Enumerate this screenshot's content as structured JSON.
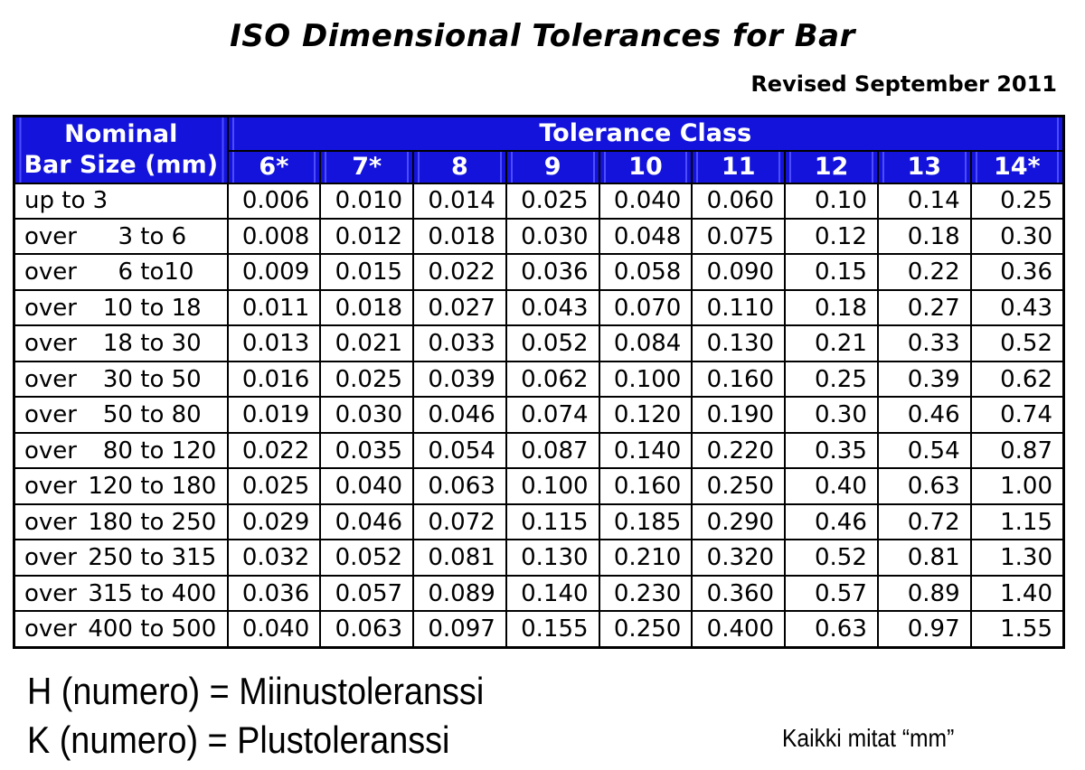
{
  "title": "ISO Dimensional Tolerances for Bar",
  "revised": "Revised September 2011",
  "table": {
    "corner_header_line1": "Nominal",
    "corner_header_line2": "Bar Size (mm)",
    "group_header": "Tolerance Class",
    "class_headers": [
      "6*",
      "7*",
      "8",
      "9",
      "10",
      "11",
      "12",
      "13",
      "14*"
    ],
    "rows": [
      {
        "label_text": "up to 3",
        "values": [
          "0.006",
          "0.010",
          "0.014",
          "0.025",
          "0.040",
          "0.060",
          "0.10",
          "0.14",
          "0.25"
        ]
      },
      {
        "label_prefix": "over",
        "label_from": "3",
        "label_sep": " to ",
        "label_to": "6",
        "values": [
          "0.008",
          "0.012",
          "0.018",
          "0.030",
          "0.048",
          "0.075",
          "0.12",
          "0.18",
          "0.30"
        ]
      },
      {
        "label_prefix": "over",
        "label_from": "6",
        "label_sep": " to",
        "label_to": "10",
        "values": [
          "0.009",
          "0.015",
          "0.022",
          "0.036",
          "0.058",
          "0.090",
          "0.15",
          "0.22",
          "0.36"
        ]
      },
      {
        "label_prefix": "over",
        "label_from": "10",
        "label_sep": " to ",
        "label_to": "18",
        "values": [
          "0.011",
          "0.018",
          "0.027",
          "0.043",
          "0.070",
          "0.110",
          "0.18",
          "0.27",
          "0.43"
        ]
      },
      {
        "label_prefix": "over",
        "label_from": "18",
        "label_sep": " to ",
        "label_to": "30",
        "values": [
          "0.013",
          "0.021",
          "0.033",
          "0.052",
          "0.084",
          "0.130",
          "0.21",
          "0.33",
          "0.52"
        ]
      },
      {
        "label_prefix": "over",
        "label_from": "30",
        "label_sep": " to ",
        "label_to": "50",
        "values": [
          "0.016",
          "0.025",
          "0.039",
          "0.062",
          "0.100",
          "0.160",
          "0.25",
          "0.39",
          "0.62"
        ]
      },
      {
        "label_prefix": "over",
        "label_from": "50",
        "label_sep": " to ",
        "label_to": "80",
        "values": [
          "0.019",
          "0.030",
          "0.046",
          "0.074",
          "0.120",
          "0.190",
          "0.30",
          "0.46",
          "0.74"
        ]
      },
      {
        "label_prefix": "over",
        "label_from": "80",
        "label_sep": " to ",
        "label_to": "120",
        "values": [
          "0.022",
          "0.035",
          "0.054",
          "0.087",
          "0.140",
          "0.220",
          "0.35",
          "0.54",
          "0.87"
        ]
      },
      {
        "label_prefix": "over",
        "label_from": "120",
        "label_sep": " to ",
        "label_to": "180",
        "values": [
          "0.025",
          "0.040",
          "0.063",
          "0.100",
          "0.160",
          "0.250",
          "0.40",
          "0.63",
          "1.00"
        ]
      },
      {
        "label_prefix": "over",
        "label_from": "180",
        "label_sep": " to ",
        "label_to": "250",
        "values": [
          "0.029",
          "0.046",
          "0.072",
          "0.115",
          "0.185",
          "0.290",
          "0.46",
          "0.72",
          "1.15"
        ]
      },
      {
        "label_prefix": "over",
        "label_from": "250",
        "label_sep": " to ",
        "label_to": "315",
        "values": [
          "0.032",
          "0.052",
          "0.081",
          "0.130",
          "0.210",
          "0.320",
          "0.52",
          "0.81",
          "1.30"
        ]
      },
      {
        "label_prefix": "over",
        "label_from": "315",
        "label_sep": " to ",
        "label_to": "400",
        "values": [
          "0.036",
          "0.057",
          "0.089",
          "0.140",
          "0.230",
          "0.360",
          "0.57",
          "0.89",
          "1.40"
        ]
      },
      {
        "label_prefix": "over",
        "label_from": "400",
        "label_sep": " to ",
        "label_to": "500",
        "values": [
          "0.040",
          "0.063",
          "0.097",
          "0.155",
          "0.250",
          "0.400",
          "0.63",
          "0.97",
          "1.55"
        ]
      }
    ]
  },
  "notes": {
    "line1": "H (numero) = Miinustoleranssi",
    "line2": "K (numero) = Plustoleranssi",
    "units": "Kaikki mitat “mm”"
  },
  "colors": {
    "header_blue": "#1313dc",
    "header_accent": "#4d4dff",
    "header_text": "#ffffff",
    "border": "#000000",
    "text": "#000000",
    "background": "#ffffff"
  }
}
